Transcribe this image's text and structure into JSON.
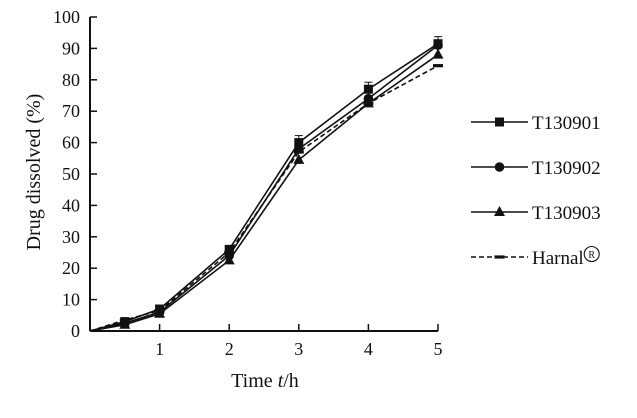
{
  "chart_data": {
    "type": "line",
    "title": "",
    "ylabel": "Drug dissolved (%)",
    "xlabel_prefix": "Time ",
    "xlabel_var": "t",
    "xlabel_suffix": "/h",
    "xlim": [
      0,
      5
    ],
    "ylim": [
      0,
      100
    ],
    "x_ticks": [
      1,
      2,
      3,
      4,
      5
    ],
    "y_ticks": [
      0,
      10,
      20,
      30,
      40,
      50,
      60,
      70,
      80,
      90,
      100
    ],
    "grid": false,
    "legend_position": "right",
    "series": [
      {
        "name": "T130901",
        "marker": "square",
        "dash": "solid",
        "color": "#111111",
        "x": [
          0,
          0.5,
          1,
          2,
          3,
          4,
          5
        ],
        "y": [
          0,
          3,
          7,
          26,
          60,
          77,
          91.5
        ]
      },
      {
        "name": "T130902",
        "marker": "circle",
        "dash": "solid",
        "color": "#111111",
        "x": [
          0,
          0.5,
          1,
          2,
          3,
          4,
          5
        ],
        "y": [
          0,
          2.5,
          6,
          24,
          58,
          74,
          91
        ]
      },
      {
        "name": "T130903",
        "marker": "triangle",
        "dash": "solid",
        "color": "#111111",
        "x": [
          0,
          0.5,
          1,
          2,
          3,
          4,
          5
        ],
        "y": [
          0,
          2,
          5.5,
          22.5,
          54.5,
          72.5,
          88
        ]
      },
      {
        "name": "Harnal",
        "name_suffix_symbol": "®",
        "marker": "dash",
        "dash": "dashed",
        "color": "#111111",
        "x": [
          0,
          0.5,
          1,
          2,
          3,
          4,
          5
        ],
        "y": [
          0,
          3.5,
          6.5,
          25,
          57,
          72.5,
          84.5
        ]
      }
    ]
  }
}
